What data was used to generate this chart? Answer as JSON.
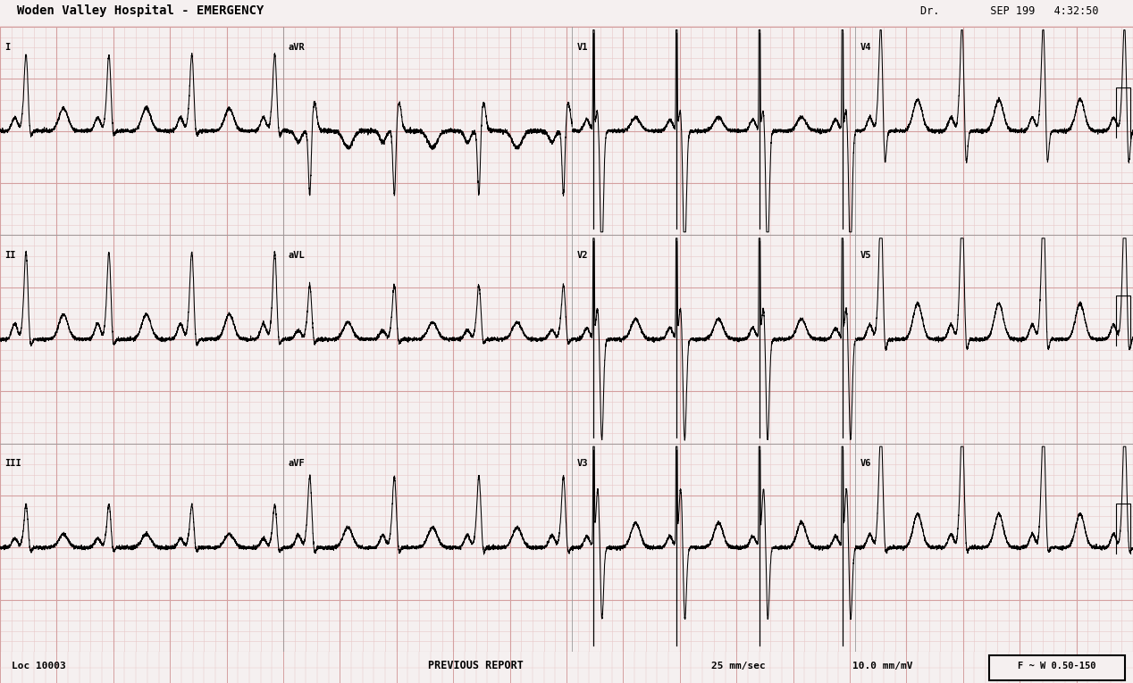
{
  "bg_color": "#f5f0f0",
  "grid_major_color": "#d4a0a0",
  "grid_minor_color": "#e8c8c8",
  "trace_color": "#000000",
  "header_text": "Woden Valley Hospital - EMERGENCY",
  "header_right": "Dr.        SEP 199   4:32:50",
  "footer_left": "Loc 10003",
  "footer_center": "PREVIOUS REPORT",
  "footer_right1": "25 mm/sec",
  "footer_right2": "10.0 mm/mV",
  "footer_box": "F ~ W 0.50-150",
  "fig_width": 12.68,
  "fig_height": 7.65,
  "dpi": 100,
  "n_rows": 3,
  "n_cols": 4,
  "leads_layout": [
    [
      "I",
      "aVR",
      "V1",
      "V4"
    ],
    [
      "II",
      "aVL",
      "V2",
      "V5"
    ],
    [
      "III",
      "aVF",
      "V3",
      "V6"
    ]
  ]
}
